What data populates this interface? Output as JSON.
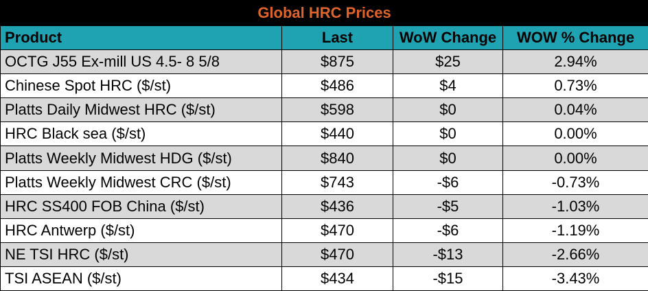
{
  "table": {
    "title": "Global HRC Prices",
    "headers": {
      "product": "Product",
      "last": "Last",
      "wow_change": "WoW Change",
      "wow_pct_change": "WOW % Change"
    },
    "rows": [
      {
        "product": "OCTG J55 Ex-mill US 4.5- 8 5/8",
        "last": "$875",
        "wow_change": "$25",
        "wow_pct_change": "2.94%"
      },
      {
        "product": "Chinese Spot HRC ($/st)",
        "last": "$486",
        "wow_change": "$4",
        "wow_pct_change": "0.73%"
      },
      {
        "product": "Platts Daily Midwest HRC ($/st)",
        "last": "$598",
        "wow_change": "$0",
        "wow_pct_change": "0.04%"
      },
      {
        "product": "HRC Black sea ($/st)",
        "last": "$440",
        "wow_change": "$0",
        "wow_pct_change": "0.00%"
      },
      {
        "product": "Platts Weekly Midwest HDG ($/st)",
        "last": "$840",
        "wow_change": "$0",
        "wow_pct_change": "0.00%"
      },
      {
        "product": "Platts Weekly Midwest CRC ($/st)",
        "last": "$743",
        "wow_change": "-$6",
        "wow_pct_change": "-0.73%"
      },
      {
        "product": "HRC SS400 FOB China ($/st)",
        "last": "$436",
        "wow_change": "-$5",
        "wow_pct_change": "-1.03%"
      },
      {
        "product": "HRC Antwerp ($/st)",
        "last": "$470",
        "wow_change": "-$6",
        "wow_pct_change": "-1.19%"
      },
      {
        "product": "NE TSI HRC ($/st)",
        "last": "$470",
        "wow_change": "-$13",
        "wow_pct_change": "-2.66%"
      },
      {
        "product": "TSI ASEAN ($/st)",
        "last": "$434",
        "wow_change": "-$15",
        "wow_pct_change": "-3.43%"
      }
    ]
  },
  "colors": {
    "title_bg": "#000000",
    "title_text": "#e0642a",
    "header_bg": "#1fa2b2",
    "shaded_row": "#d9d9d9",
    "plain_row": "#ffffff"
  }
}
